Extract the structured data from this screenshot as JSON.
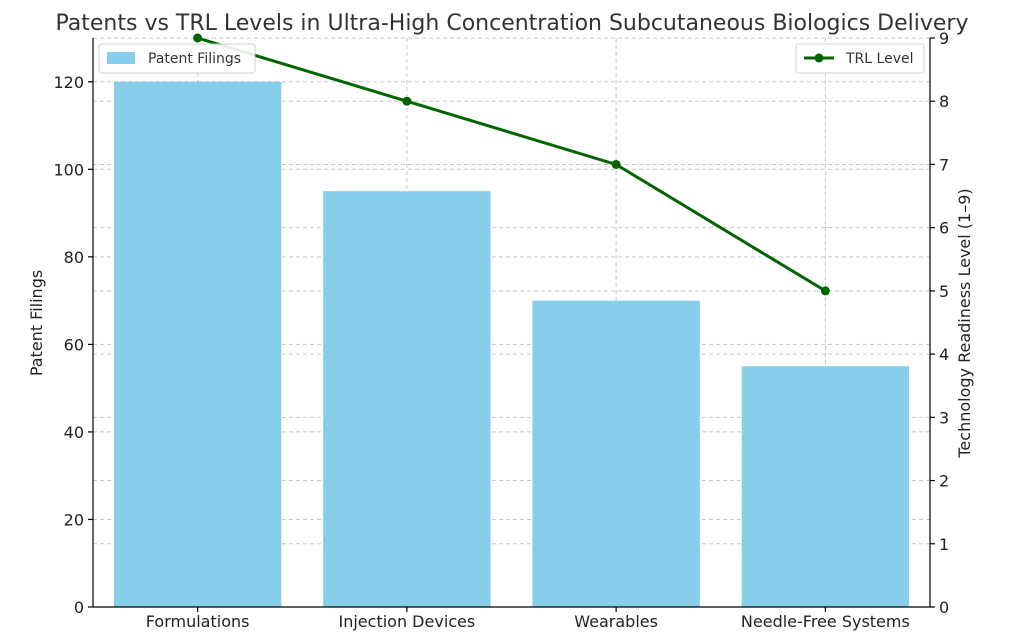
{
  "chart_data": {
    "type": "bar",
    "title": "Patents vs TRL Levels in Ultra-High Concentration Subcutaneous Biologics Delivery",
    "categories": [
      "Formulations",
      "Injection Devices",
      "Wearables",
      "Needle-Free Systems"
    ],
    "series": [
      {
        "name": "Patent Filings",
        "type": "bar",
        "axis": "left",
        "color": "#87ceeb",
        "values": [
          120,
          95,
          70,
          55
        ]
      },
      {
        "name": "TRL Level",
        "type": "line",
        "axis": "right",
        "color": "#006400",
        "marker": "circle",
        "values": [
          9,
          8,
          7,
          5
        ]
      }
    ],
    "ylabel": "Patent Filings",
    "y2label": "Technology Readiness Level (1–9)",
    "ylim": [
      0,
      130
    ],
    "y2lim": [
      0,
      9
    ],
    "yticks": [
      0,
      20,
      40,
      60,
      80,
      100,
      120
    ],
    "y2ticks": [
      0,
      1,
      2,
      3,
      4,
      5,
      6,
      7,
      8,
      9
    ],
    "grid": true,
    "legend_bar_placement": "top-left",
    "legend_line_placement": "top-right"
  }
}
